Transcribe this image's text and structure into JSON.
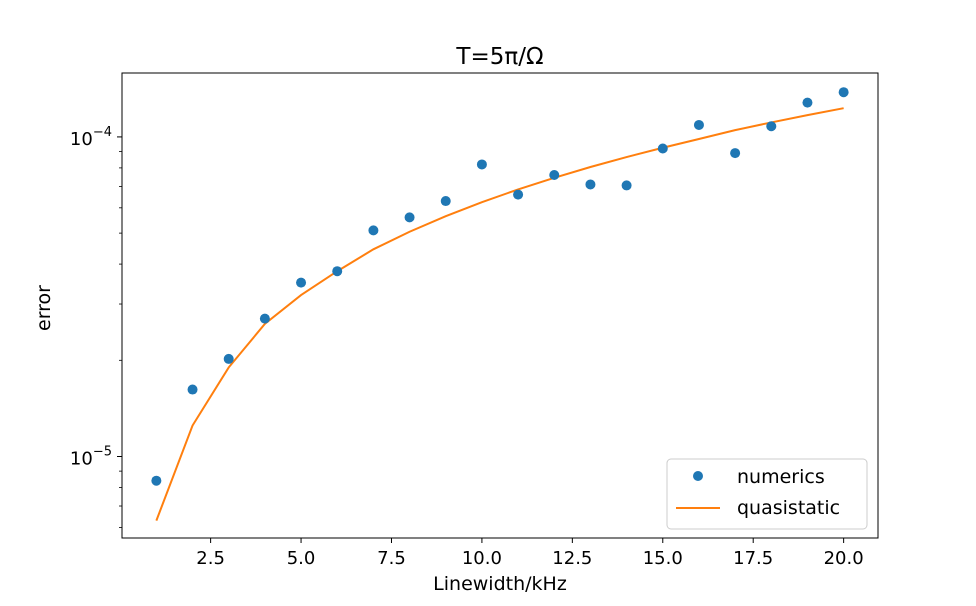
{
  "chart_data": {
    "type": "scatter",
    "title": "T=5π/Ω",
    "xlabel": "Linewidth/kHz",
    "ylabel": "error",
    "xlim": [
      0.05,
      20.95
    ],
    "ylim_log10": [
      -5.255,
      -3.8
    ],
    "yscale": "log",
    "grid": false,
    "legend_position": "lower-right",
    "x_ticks": [
      2.5,
      5.0,
      7.5,
      10.0,
      12.5,
      15.0,
      17.5,
      20.0
    ],
    "x_tick_labels": [
      "2.5",
      "5.0",
      "7.5",
      "10.0",
      "12.5",
      "15.0",
      "17.5",
      "20.0"
    ],
    "y_major_ticks": [
      {
        "base": "10",
        "exp": "−5",
        "log10": -5
      },
      {
        "base": "10",
        "exp": "−4",
        "log10": -4
      }
    ],
    "y_minor_ticks": [
      6e-06,
      7e-06,
      8e-06,
      9e-06,
      2e-05,
      3e-05,
      4e-05,
      5e-05,
      6e-05,
      7e-05,
      8e-05,
      9e-05
    ],
    "x": [
      1,
      2,
      3,
      4,
      5,
      6,
      7,
      8,
      9,
      10,
      11,
      12,
      13,
      14,
      15,
      16,
      17,
      18,
      19,
      20
    ],
    "series": [
      {
        "name": "numerics",
        "kind": "scatter",
        "color": "#1f77b4",
        "values": [
          8.4e-06,
          1.62e-05,
          2.02e-05,
          2.7e-05,
          3.5e-05,
          3.8e-05,
          5.1e-05,
          5.6e-05,
          6.3e-05,
          8.2e-05,
          6.6e-05,
          7.6e-05,
          7.1e-05,
          7.05e-05,
          9.2e-05,
          0.000109,
          8.9e-05,
          0.000108,
          0.000128,
          0.000138
        ]
      },
      {
        "name": "quasistatic",
        "kind": "line",
        "color": "#ff7f0e",
        "values": [
          6.3e-06,
          1.25e-05,
          1.9e-05,
          2.6e-05,
          3.2e-05,
          3.8e-05,
          4.45e-05,
          5.05e-05,
          5.65e-05,
          6.25e-05,
          6.85e-05,
          7.45e-05,
          8.05e-05,
          8.65e-05,
          9.25e-05,
          9.85e-05,
          0.000105,
          0.000111,
          0.000117,
          0.000123
        ]
      }
    ]
  }
}
